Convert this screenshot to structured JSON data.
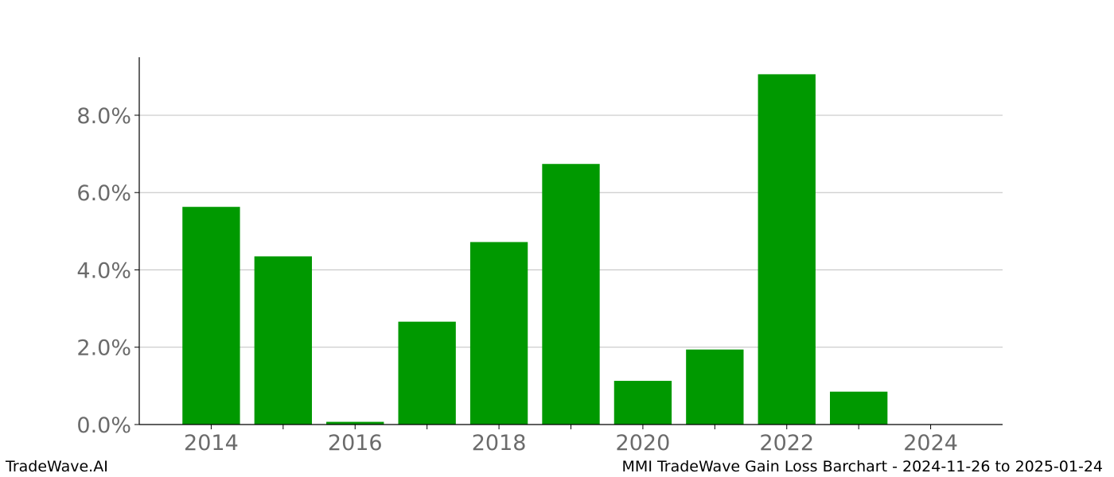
{
  "footer": {
    "brand": "TradeWave.AI",
    "caption": "MMI TradeWave Gain Loss Barchart - 2024-11-26 to 2025-01-24"
  },
  "colors": {
    "bar": "#009900",
    "grid": "#c0c0c0",
    "axis": "#000000",
    "tick_label": "#6b6b6b"
  },
  "chart_data": {
    "type": "bar",
    "title": "",
    "xlabel": "",
    "ylabel": "",
    "categories": [
      2014,
      2015,
      2016,
      2017,
      2018,
      2019,
      2020,
      2021,
      2022,
      2023
    ],
    "values": [
      5.63,
      4.35,
      0.07,
      2.66,
      4.72,
      6.74,
      1.13,
      1.94,
      9.06,
      0.85
    ],
    "value_unit": "%",
    "xlim": [
      2013,
      2025
    ],
    "ylim": [
      0,
      9.5
    ],
    "x_ticks": [
      2014,
      2016,
      2018,
      2020,
      2022,
      2024
    ],
    "x_tick_labels": [
      "2014",
      "2016",
      "2018",
      "2020",
      "2022",
      "2024"
    ],
    "y_ticks": [
      0,
      2,
      4,
      6,
      8
    ],
    "y_tick_labels": [
      "0.0%",
      "2.0%",
      "4.0%",
      "6.0%",
      "8.0%"
    ],
    "grid": "horizontal",
    "legend": "none"
  }
}
